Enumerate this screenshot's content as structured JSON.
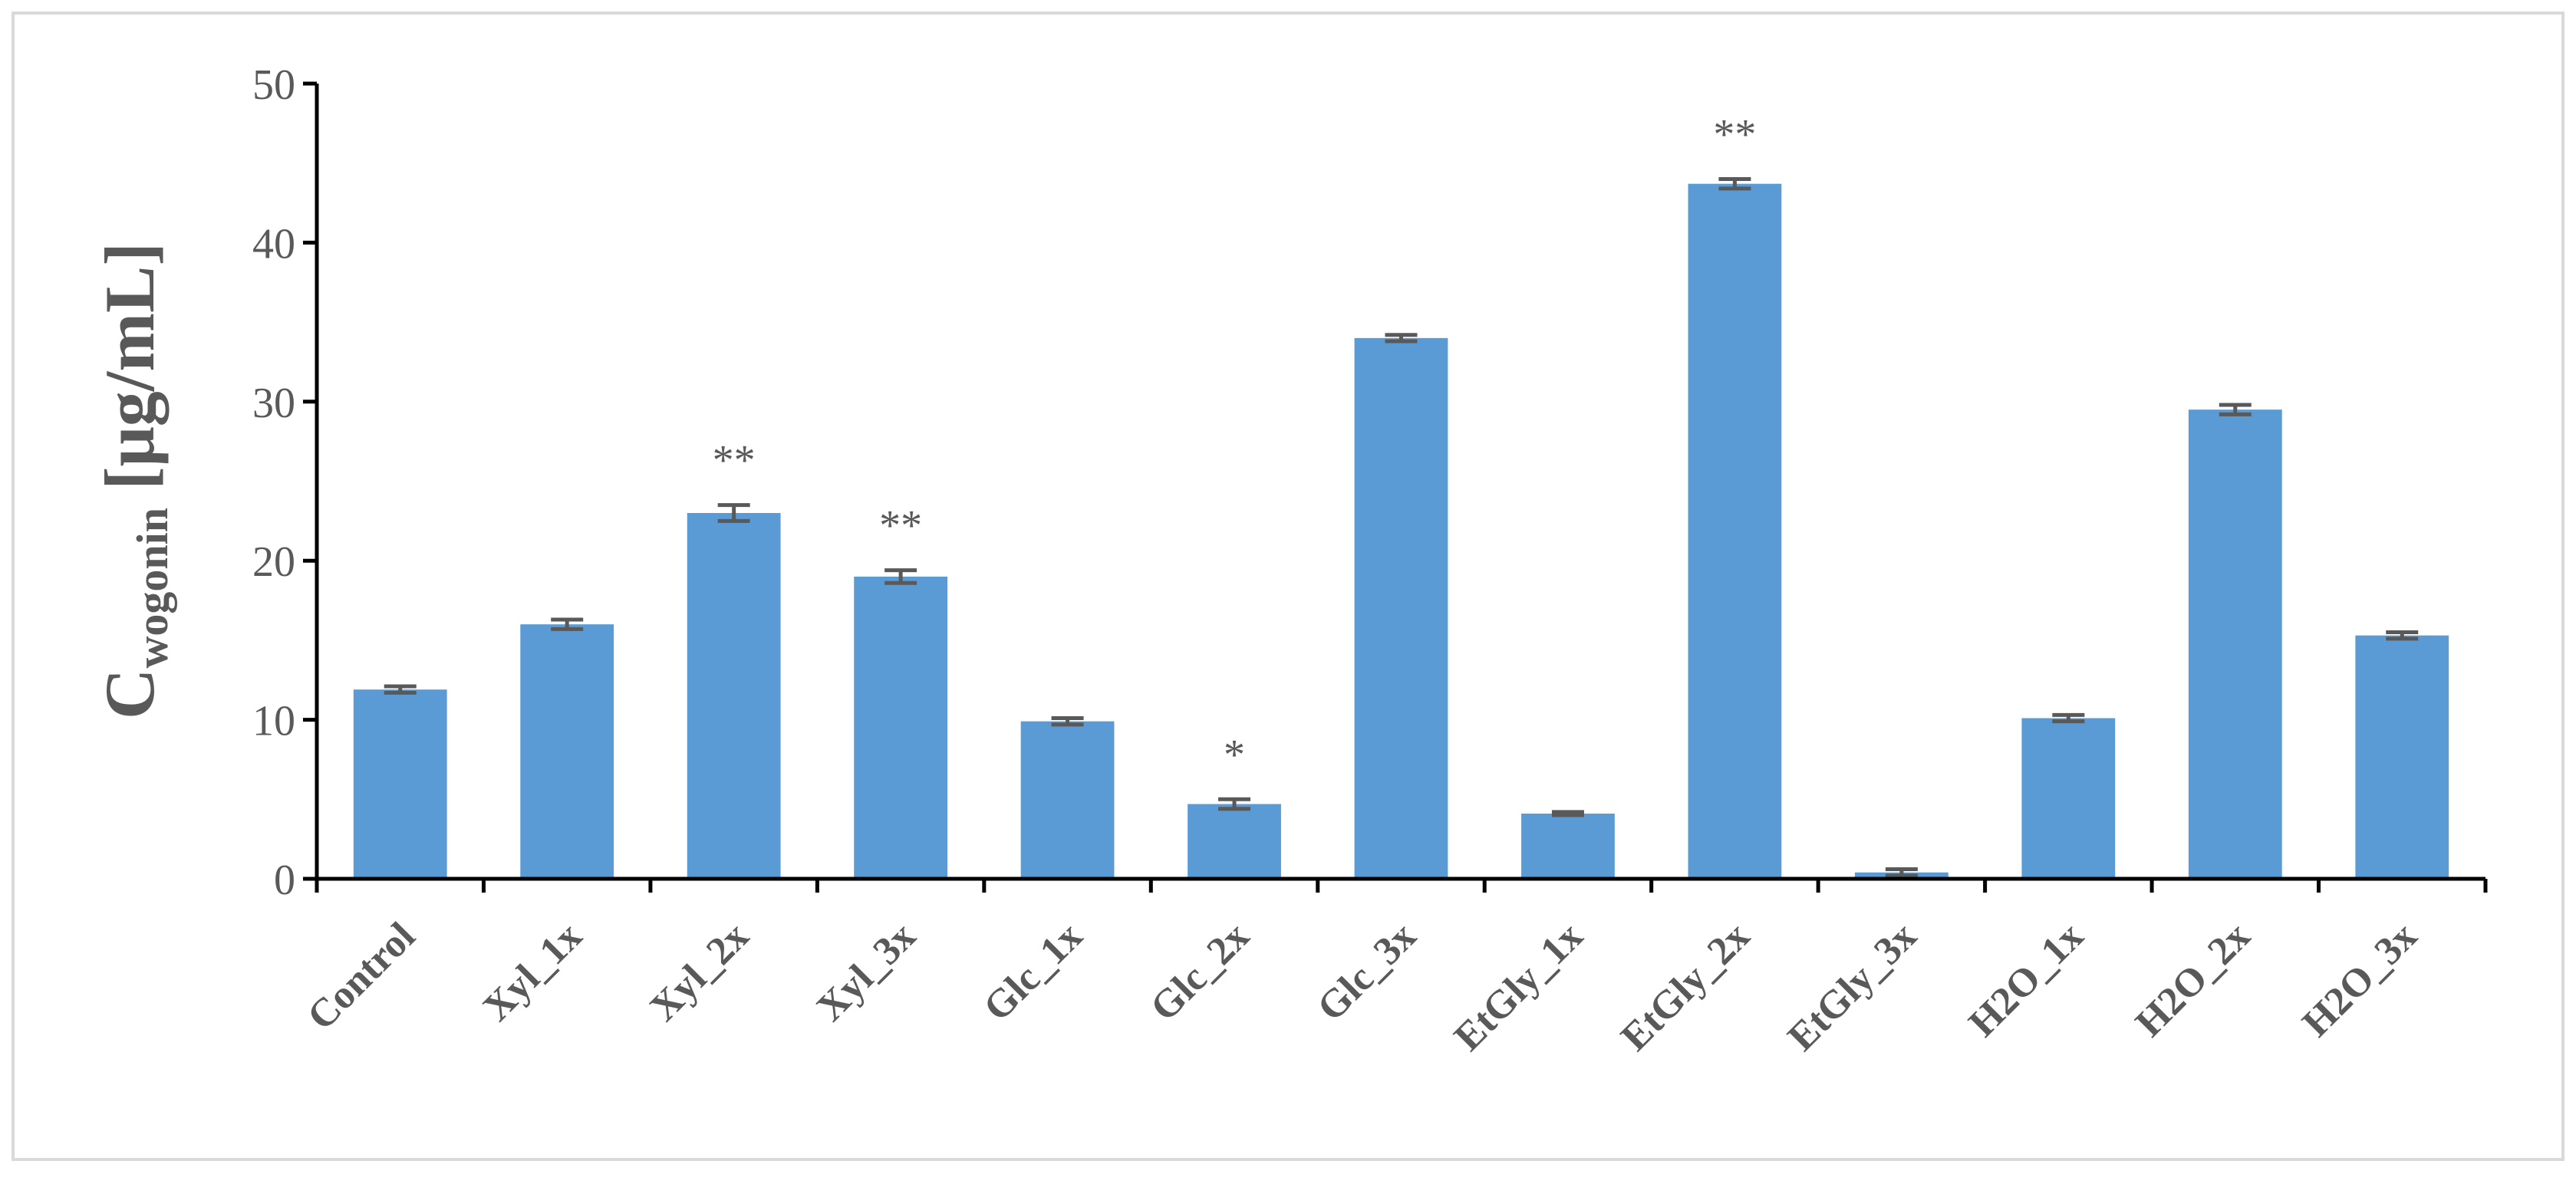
{
  "chart_data": {
    "type": "bar",
    "ylabel": {
      "text": "C",
      "subscript": "wogonin",
      "suffix": " [μg/mL]"
    },
    "categories": [
      "Control",
      "Xyl_1x",
      "Xyl_2x",
      "Xyl_3x",
      "Glc_1x",
      "Glc_2x",
      "Glc_3x",
      "EtGly_1x",
      "EtGly_2x",
      "EtGly_3x",
      "H2O_1x",
      "H2O_2x",
      "H2O_3x"
    ],
    "values": [
      11.9,
      16,
      23,
      19,
      9.9,
      4.7,
      34,
      4.1,
      43.7,
      0.4,
      10.1,
      29.5,
      15.3
    ],
    "errors": [
      0.2,
      0.3,
      0.5,
      0.4,
      0.2,
      0.3,
      0.2,
      0.1,
      0.3,
      0.2,
      0.2,
      0.3,
      0.2
    ],
    "annotations": [
      null,
      null,
      "**",
      "**",
      null,
      "*",
      null,
      null,
      "**",
      null,
      null,
      null,
      null
    ],
    "color": "#5b9bd5",
    "error_color": "#595959",
    "ylim": [
      0,
      50
    ],
    "yticks": [
      0,
      10,
      20,
      30,
      40,
      50
    ],
    "grid": false
  }
}
